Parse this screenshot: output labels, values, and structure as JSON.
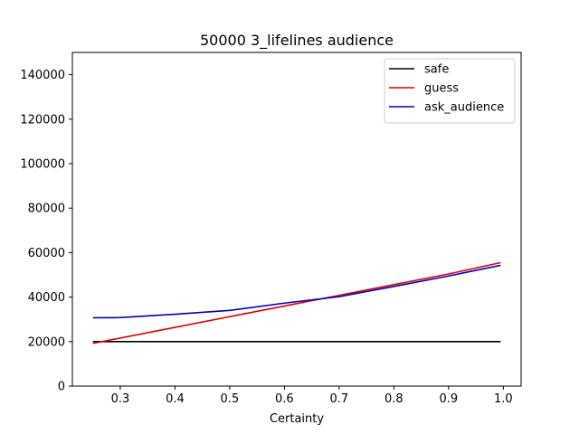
{
  "chart_data": {
    "type": "line",
    "title": "50000 3_lifelines audience",
    "xlabel": "Certainty",
    "ylabel": "",
    "xlim": [
      0.2125,
      1.0325
    ],
    "ylim": [
      0,
      150000
    ],
    "xticks": [
      0.3,
      0.4,
      0.5,
      0.6,
      0.7,
      0.8,
      0.9,
      1.0
    ],
    "xtick_labels": [
      "0.3",
      "0.4",
      "0.5",
      "0.6",
      "0.7",
      "0.8",
      "0.9",
      "1.0"
    ],
    "yticks": [
      0,
      20000,
      40000,
      60000,
      80000,
      100000,
      120000,
      140000
    ],
    "ytick_labels": [
      "0",
      "20000",
      "40000",
      "60000",
      "80000",
      "100000",
      "120000",
      "140000"
    ],
    "grid": false,
    "legend_position": "upper right",
    "series": [
      {
        "name": "safe",
        "color": "#000000",
        "x": [
          0.25,
          0.995
        ],
        "y": [
          20000,
          20000
        ]
      },
      {
        "name": "guess",
        "color": "#e00000",
        "x": [
          0.25,
          0.4,
          0.5,
          0.6,
          0.7,
          0.8,
          0.9,
          0.995
        ],
        "y": [
          19200,
          26400,
          31200,
          36000,
          40800,
          45600,
          50400,
          55500
        ]
      },
      {
        "name": "ask_audience",
        "color": "#0000c0",
        "x": [
          0.25,
          0.3,
          0.4,
          0.5,
          0.6,
          0.7,
          0.8,
          0.9,
          0.995
        ],
        "y": [
          30700,
          30800,
          32300,
          34000,
          37300,
          40200,
          44800,
          49500,
          54300
        ]
      }
    ]
  }
}
